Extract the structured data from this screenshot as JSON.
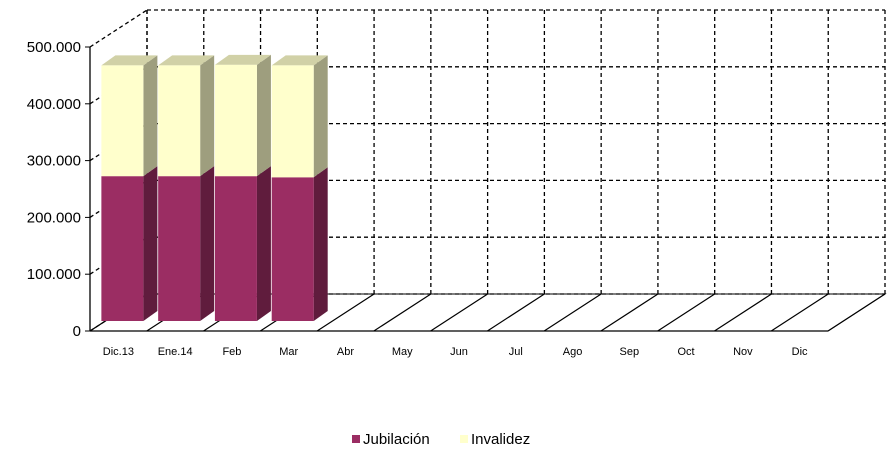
{
  "chart_data": {
    "type": "bar",
    "stacked": true,
    "three_d": true,
    "categories": [
      "Dic.13",
      "Ene.14",
      "Feb",
      "Mar",
      "Abr",
      "May",
      "Jun",
      "Jul",
      "Ago",
      "Sep",
      "Oct",
      "Nov",
      "Dic"
    ],
    "series": [
      {
        "name": "Jubilación",
        "color": "#9b2d63",
        "values": [
          255000,
          255000,
          255000,
          253000,
          null,
          null,
          null,
          null,
          null,
          null,
          null,
          null,
          null
        ]
      },
      {
        "name": "Invalidez",
        "color": "#ffffcc",
        "values": [
          195000,
          195000,
          196000,
          197000,
          null,
          null,
          null,
          null,
          null,
          null,
          null,
          null,
          null
        ]
      }
    ],
    "y_tick_labels": [
      "0",
      "100.000",
      "200.000",
      "300.000",
      "400.000",
      "500.000"
    ],
    "ylim": [
      0,
      500000
    ],
    "y_step": 100000,
    "grid": true,
    "legend_position": "bottom",
    "title": "",
    "xlabel": "",
    "ylabel": ""
  }
}
